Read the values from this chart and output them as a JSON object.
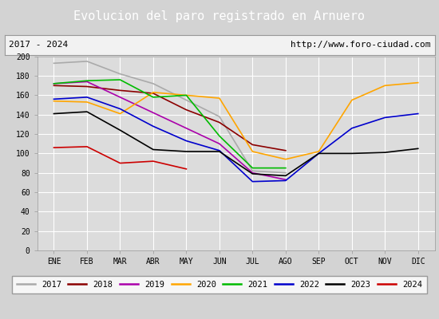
{
  "title": "Evolucion del paro registrado en Arnuero",
  "subtitle_left": "2017 - 2024",
  "subtitle_right": "http://www.foro-ciudad.com",
  "x_labels": [
    "ENE",
    "FEB",
    "MAR",
    "ABR",
    "MAY",
    "JUN",
    "JUL",
    "AGO",
    "SEP",
    "OCT",
    "NOV",
    "DIC"
  ],
  "ylim": [
    0,
    200
  ],
  "yticks": [
    0,
    20,
    40,
    60,
    80,
    100,
    120,
    140,
    160,
    180,
    200
  ],
  "series": {
    "2017": {
      "color": "#aaaaaa",
      "data": [
        193,
        195,
        182,
        172,
        155,
        138,
        82,
        80,
        null,
        null,
        null,
        null
      ]
    },
    "2018": {
      "color": "#8b0000",
      "data": [
        170,
        169,
        165,
        162,
        145,
        132,
        109,
        103,
        null,
        null,
        null,
        null
      ]
    },
    "2019": {
      "color": "#aa00aa",
      "data": [
        172,
        174,
        158,
        142,
        126,
        110,
        80,
        73,
        null,
        null,
        null,
        null
      ]
    },
    "2020": {
      "color": "#ffa500",
      "data": [
        154,
        153,
        141,
        163,
        160,
        157,
        102,
        94,
        102,
        155,
        170,
        173
      ]
    },
    "2021": {
      "color": "#00bb00",
      "data": [
        172,
        175,
        176,
        158,
        160,
        118,
        85,
        85,
        null,
        null,
        null,
        null
      ]
    },
    "2022": {
      "color": "#0000cc",
      "data": [
        156,
        158,
        146,
        128,
        113,
        103,
        71,
        72,
        100,
        126,
        137,
        141
      ]
    },
    "2023": {
      "color": "#000000",
      "data": [
        141,
        143,
        124,
        104,
        102,
        102,
        79,
        77,
        100,
        100,
        101,
        105
      ]
    },
    "2024": {
      "color": "#cc0000",
      "data": [
        106,
        107,
        90,
        92,
        84,
        null,
        null,
        null,
        null,
        null,
        null,
        null
      ]
    }
  },
  "title_bg": "#5b9bd5",
  "title_fg": "#ffffff",
  "subtitle_bg": "#f2f2f2",
  "plot_bg": "#dcdcdc",
  "fig_bg": "#d3d3d3",
  "legend_bg": "#ffffff",
  "grid_color": "#ffffff",
  "title_fontsize": 11,
  "subtitle_fontsize": 8,
  "tick_fontsize": 7,
  "legend_fontsize": 7.5
}
